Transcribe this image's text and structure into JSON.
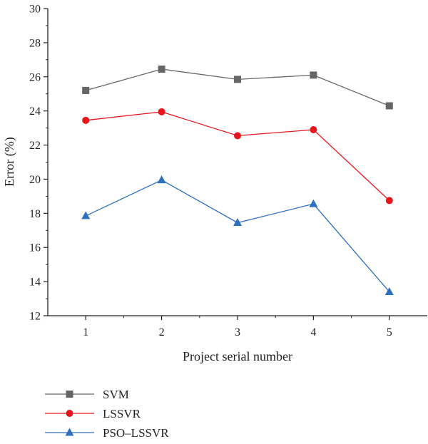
{
  "chart_data": {
    "type": "line",
    "xlabel": "Project serial number",
    "ylabel": "Error (%)",
    "x": [
      1,
      2,
      3,
      4,
      5
    ],
    "xlim": [
      0.5,
      5.5
    ],
    "ylim": [
      12,
      30
    ],
    "yticks": [
      12,
      14,
      16,
      18,
      20,
      22,
      24,
      26,
      28,
      30
    ],
    "grid": false,
    "legend_position": "bottom-left",
    "series": [
      {
        "name": "SVM",
        "values": [
          25.2,
          26.45,
          25.85,
          26.1,
          24.3
        ],
        "color": "#666666",
        "marker": "square"
      },
      {
        "name": "LSSVR",
        "values": [
          23.45,
          23.95,
          22.55,
          22.9,
          18.75
        ],
        "color": "#e8141c",
        "marker": "circle"
      },
      {
        "name": "PSO–LSSVR",
        "values": [
          17.85,
          19.95,
          17.45,
          18.55,
          13.4
        ],
        "color": "#2e6fbe",
        "marker": "triangle"
      }
    ]
  }
}
